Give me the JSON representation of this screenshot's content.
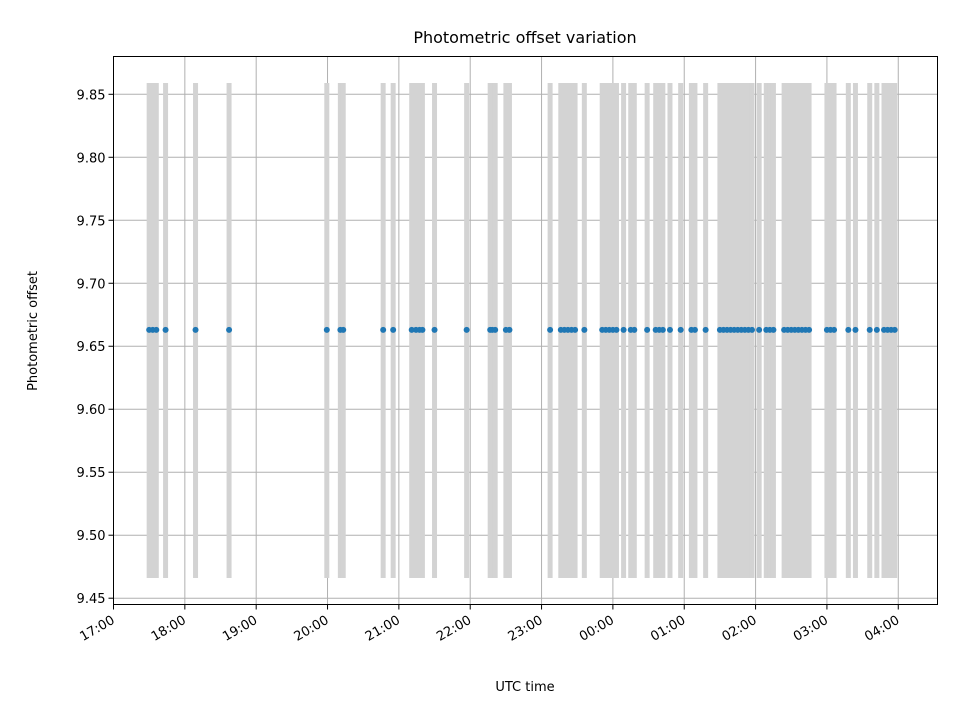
{
  "chart_data": {
    "type": "scatter",
    "title": "Photometric offset variation",
    "xlabel": "UTC time",
    "ylabel": "Photometric offset",
    "grid": true,
    "x_axis": {
      "unit": "UTC time of night (hours, wrapping past midnight)",
      "range_hours": [
        17.0,
        28.55
      ],
      "ticks": [
        {
          "hour": 17,
          "label": "17:00"
        },
        {
          "hour": 18,
          "label": "18:00"
        },
        {
          "hour": 19,
          "label": "19:00"
        },
        {
          "hour": 20,
          "label": "20:00"
        },
        {
          "hour": 21,
          "label": "21:00"
        },
        {
          "hour": 22,
          "label": "22:00"
        },
        {
          "hour": 23,
          "label": "23:00"
        },
        {
          "hour": 24,
          "label": "00:00"
        },
        {
          "hour": 25,
          "label": "01:00"
        },
        {
          "hour": 26,
          "label": "02:00"
        },
        {
          "hour": 27,
          "label": "03:00"
        },
        {
          "hour": 28,
          "label": "04:00"
        }
      ]
    },
    "y_axis": {
      "range": [
        9.445,
        9.88
      ],
      "ticks": [
        9.45,
        9.5,
        9.55,
        9.6,
        9.65,
        9.7,
        9.75,
        9.8,
        9.85
      ]
    },
    "colors": {
      "points": "#1f77b4",
      "error_bars": "#d3d3d3",
      "grid": "#b0b0b0"
    },
    "error_bar_range": [
      9.466,
      9.859
    ],
    "series": [
      {
        "y": 9.663,
        "x_hours": [
          17.5,
          17.55,
          17.6,
          17.73,
          18.15,
          18.62,
          19.99,
          20.18,
          20.22,
          20.78,
          20.92,
          21.18,
          21.24,
          21.29,
          21.33,
          21.5,
          21.95,
          22.28,
          22.31,
          22.35,
          22.5,
          22.55,
          23.12,
          23.27,
          23.32,
          23.37,
          23.42,
          23.47,
          23.6,
          23.85,
          23.9,
          23.95,
          24.0,
          24.05,
          24.15,
          24.25,
          24.3,
          24.48,
          24.6,
          24.65,
          24.7,
          24.8,
          24.95,
          25.1,
          25.15,
          25.3,
          25.5,
          25.55,
          25.6,
          25.65,
          25.7,
          25.75,
          25.8,
          25.85,
          25.9,
          25.95,
          26.05,
          26.15,
          26.2,
          26.25,
          26.4,
          26.45,
          26.5,
          26.55,
          26.6,
          26.65,
          26.7,
          26.75,
          27.0,
          27.05,
          27.1,
          27.3,
          27.4,
          27.6,
          27.7,
          27.8,
          27.85,
          27.9,
          27.95
        ]
      }
    ]
  }
}
